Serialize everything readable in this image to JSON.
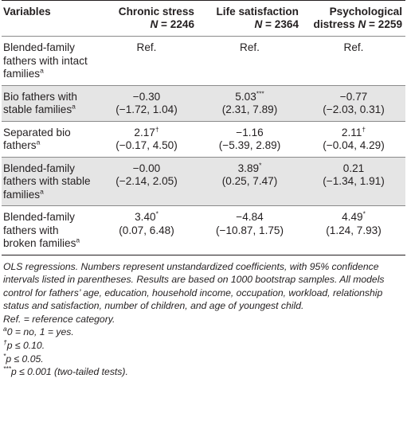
{
  "table": {
    "headers": {
      "variables": "Variables",
      "columns": [
        {
          "title": "Chronic stress",
          "n_label": "N",
          "n_value": " = 2246"
        },
        {
          "title": "Life satisfaction",
          "n_label": "N",
          "n_value": " = 2364"
        },
        {
          "title": "Psychological distress",
          "n_label": "N",
          "n_value": " = 2259"
        }
      ]
    },
    "rows": [
      {
        "label": "Blended-family fathers with intact families",
        "sup": "a",
        "cells": [
          {
            "value": "Ref.",
            "sig": "",
            "ci": ""
          },
          {
            "value": "Ref.",
            "sig": "",
            "ci": ""
          },
          {
            "value": "Ref.",
            "sig": "",
            "ci": ""
          }
        ]
      },
      {
        "label": "Bio fathers with stable families",
        "sup": "a",
        "cells": [
          {
            "value": "−0.30",
            "sig": "",
            "ci": "(−1.72, 1.04)"
          },
          {
            "value": "5.03",
            "sig": "***",
            "ci": "(2.31, 7.89)"
          },
          {
            "value": "−0.77",
            "sig": "",
            "ci": "(−2.03, 0.31)"
          }
        ]
      },
      {
        "label": "Separated bio fathers",
        "sup": "a",
        "cells": [
          {
            "value": "2.17",
            "sig": "†",
            "ci": "(−0.17, 4.50)"
          },
          {
            "value": "−1.16",
            "sig": "",
            "ci": "(−5.39, 2.89)"
          },
          {
            "value": "2.11",
            "sig": "†",
            "ci": "(−0.04, 4.29)"
          }
        ]
      },
      {
        "label": "Blended-family fathers with stable families",
        "sup": "a",
        "cells": [
          {
            "value": "−0.00",
            "sig": "",
            "ci": "(−2.14, 2.05)"
          },
          {
            "value": "3.89",
            "sig": "*",
            "ci": "(0.25, 7.47)"
          },
          {
            "value": "0.21",
            "sig": "",
            "ci": "(−1.34, 1.91)"
          }
        ]
      },
      {
        "label": "Blended-family fathers with broken families",
        "sup": "a",
        "cells": [
          {
            "value": "3.40",
            "sig": "*",
            "ci": "(0.07, 6.48)"
          },
          {
            "value": "−4.84",
            "sig": "",
            "ci": "(−10.87, 1.75)"
          },
          {
            "value": "4.49",
            "sig": "*",
            "ci": "(1.24, 7.93)"
          }
        ]
      }
    ]
  },
  "notes": {
    "main": "OLS regressions. Numbers represent unstandardized coefficients, with 95% confidence intervals listed in parentheses. Results are based on 1000 bootstrap samples. All models control for fathers’ age, education, household income, occupation, workload, relationship status and satisfaction, number of children, and age of youngest child.",
    "ref": "Ref. = reference category.",
    "footnotes": [
      {
        "mark": "a",
        "text": "0 = no, 1 = yes."
      },
      {
        "mark": "†",
        "text": "p ≤ 0.10."
      },
      {
        "mark": "*",
        "text": "p ≤ 0.05."
      },
      {
        "mark": "***",
        "text": "p ≤ 0.001 (two-tailed tests)."
      }
    ]
  }
}
